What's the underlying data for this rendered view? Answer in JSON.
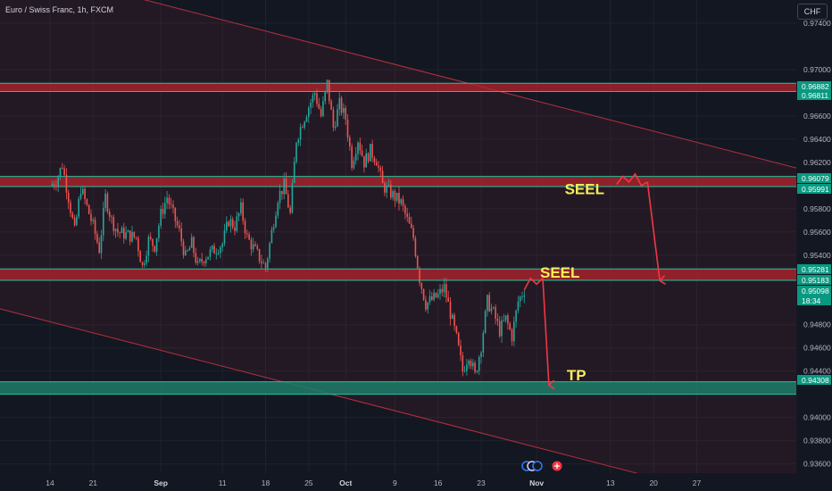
{
  "header": {
    "symbol_title": "Euro / Swiss Franc, 1h, FXCM",
    "currency": "CHF"
  },
  "colors": {
    "background": "#131722",
    "resistance_zone": "#b4242d",
    "support_zone": "#1e7d68",
    "zone_border": "#22c2a0",
    "channel": "#b4303e",
    "arrow": "#f23645",
    "annotation_text": "#f7ef5a",
    "candle_up": "#26a69a",
    "candle_down": "#ef5350"
  },
  "chart_data": {
    "type": "candlestick",
    "instrument": "Euro / Swiss Franc",
    "timeframe": "1h",
    "source": "FXCM",
    "currency": "CHF",
    "y_range": [
      0.9352,
      0.976
    ],
    "y_ticks": [
      "0.97400",
      "0.97000",
      "0.96600",
      "0.96400",
      "0.96200",
      "0.95800",
      "0.95600",
      "0.95400",
      "0.94800",
      "0.94600",
      "0.94400",
      "0.94000",
      "0.93800",
      "0.93600"
    ],
    "x_ticks": [
      {
        "label": "14",
        "bold": false
      },
      {
        "label": "21",
        "bold": false
      },
      {
        "label": "Sep",
        "bold": true
      },
      {
        "label": "11",
        "bold": false
      },
      {
        "label": "18",
        "bold": false
      },
      {
        "label": "25",
        "bold": false
      },
      {
        "label": "Oct",
        "bold": true
      },
      {
        "label": "9",
        "bold": false
      },
      {
        "label": "16",
        "bold": false
      },
      {
        "label": "23",
        "bold": false
      },
      {
        "label": "Nov",
        "bold": true
      },
      {
        "label": "13",
        "bold": false
      },
      {
        "label": "20",
        "bold": false
      },
      {
        "label": "27",
        "bold": false
      }
    ],
    "price_path": [
      [
        "14 Aug",
        0.96
      ],
      [
        "15 Aug",
        0.9604
      ],
      [
        "16 Aug",
        0.9618
      ],
      [
        "17 Aug",
        0.959
      ],
      [
        "18 Aug",
        0.956
      ],
      [
        "19 Aug",
        0.9598
      ],
      [
        "21 Aug",
        0.9565
      ],
      [
        "22 Aug",
        0.9545
      ],
      [
        "23 Aug",
        0.959
      ],
      [
        "24 Aug",
        0.957
      ],
      [
        "25 Aug",
        0.956
      ],
      [
        "28 Aug",
        0.9555
      ],
      [
        "29 Aug",
        0.953
      ],
      [
        "30 Aug",
        0.9553
      ],
      [
        "31 Aug",
        0.9548
      ],
      [
        "1 Sep",
        0.9575
      ],
      [
        "2 Sep",
        0.959
      ],
      [
        "4 Sep",
        0.956
      ],
      [
        "5 Sep",
        0.9538
      ],
      [
        "6 Sep",
        0.955
      ],
      [
        "7 Sep",
        0.953
      ],
      [
        "8 Sep",
        0.9538
      ],
      [
        "11 Sep",
        0.955
      ],
      [
        "12 Sep",
        0.957
      ],
      [
        "13 Sep",
        0.9565
      ],
      [
        "14 Sep",
        0.958
      ],
      [
        "15 Sep",
        0.9555
      ],
      [
        "18 Sep",
        0.9529
      ],
      [
        "19 Sep",
        0.956
      ],
      [
        "20 Sep",
        0.959
      ],
      [
        "21 Sep",
        0.96
      ],
      [
        "22 Sep",
        0.9575
      ],
      [
        "23 Sep",
        0.964
      ],
      [
        "24 Sep",
        0.9655
      ],
      [
        "25 Sep",
        0.9668
      ],
      [
        "26 Sep",
        0.968
      ],
      [
        "27 Sep",
        0.966
      ],
      [
        "28 Sep",
        0.9688
      ],
      [
        "29 Sep",
        0.965
      ],
      [
        "30 Sep",
        0.967
      ],
      [
        "1 Oct",
        0.9658
      ],
      [
        "2 Oct",
        0.962
      ],
      [
        "3 Oct",
        0.964
      ],
      [
        "4 Oct",
        0.962
      ],
      [
        "5 Oct",
        0.963
      ],
      [
        "6 Oct",
        0.9622
      ],
      [
        "7 Oct",
        0.96
      ],
      [
        "9 Oct",
        0.959
      ],
      [
        "10 Oct",
        0.9585
      ],
      [
        "11 Oct",
        0.957
      ],
      [
        "12 Oct",
        0.9555
      ],
      [
        "13 Oct",
        0.952
      ],
      [
        "14 Oct",
        0.9498
      ],
      [
        "16 Oct",
        0.9505
      ],
      [
        "17 Oct",
        0.9512
      ],
      [
        "18 Oct",
        0.949
      ],
      [
        "19 Oct",
        0.9468
      ],
      [
        "20 Oct",
        0.944
      ],
      [
        "21 Oct",
        0.9455
      ],
      [
        "22 Oct",
        0.9436
      ],
      [
        "23 Oct",
        0.9462
      ],
      [
        "24 Oct",
        0.95
      ],
      [
        "25 Oct",
        0.949
      ],
      [
        "26 Oct",
        0.9475
      ],
      [
        "27 Oct",
        0.9485
      ],
      [
        "28 Oct",
        0.947
      ],
      [
        "29 Oct",
        0.95
      ],
      [
        "30 Oct",
        0.951
      ]
    ],
    "zones": [
      {
        "name": "upper-resistance",
        "top": 0.96882,
        "bottom": 0.96811,
        "kind": "resistance"
      },
      {
        "name": "mid-resistance",
        "top": 0.96079,
        "bottom": 0.95991,
        "kind": "resistance"
      },
      {
        "name": "lower-resistance",
        "top": 0.95281,
        "bottom": 0.95183,
        "kind": "resistance"
      },
      {
        "name": "take-profit",
        "top": 0.94308,
        "bottom": 0.942,
        "kind": "support"
      }
    ],
    "price_labels": [
      {
        "value": "0.96882",
        "color": "#089981"
      },
      {
        "value": "0.96811",
        "color": "#089981"
      },
      {
        "value": "0.96079",
        "color": "#089981"
      },
      {
        "value": "0.95991",
        "color": "#089981"
      },
      {
        "value": "0.95281",
        "color": "#089981"
      },
      {
        "value": "0.95183",
        "color": "#089981"
      },
      {
        "value": "0.95098",
        "color": "#089981",
        "sub": "18:34"
      },
      {
        "value": "0.94308",
        "color": "#089981"
      }
    ],
    "annotations": [
      {
        "text": "SEEL",
        "at": [
          "16 Nov",
          0.9602
        ]
      },
      {
        "text": "SEEL",
        "at": [
          "Nov",
          0.9522
        ]
      },
      {
        "text": "TP",
        "at": [
          "1 Nov",
          0.9433
        ]
      }
    ],
    "projections": [
      {
        "zigzag": [
          [
            "14 Nov",
            0.9601
          ],
          [
            "15 Nov",
            0.9608
          ],
          [
            "16 Nov",
            0.9603
          ],
          [
            "17 Nov",
            0.961
          ],
          [
            "18 Nov",
            0.96
          ],
          [
            "19 Nov",
            0.9603
          ]
        ],
        "arrow_to": [
          "21 Nov",
          0.9518
        ]
      },
      {
        "zigzag": [
          [
            "30 Oct",
            0.951
          ],
          [
            "31 Oct",
            0.952
          ],
          [
            "1 Nov",
            0.9515
          ],
          [
            "2 Nov",
            0.952
          ]
        ],
        "arrow_to": [
          "3 Nov",
          0.9428
        ]
      }
    ]
  }
}
